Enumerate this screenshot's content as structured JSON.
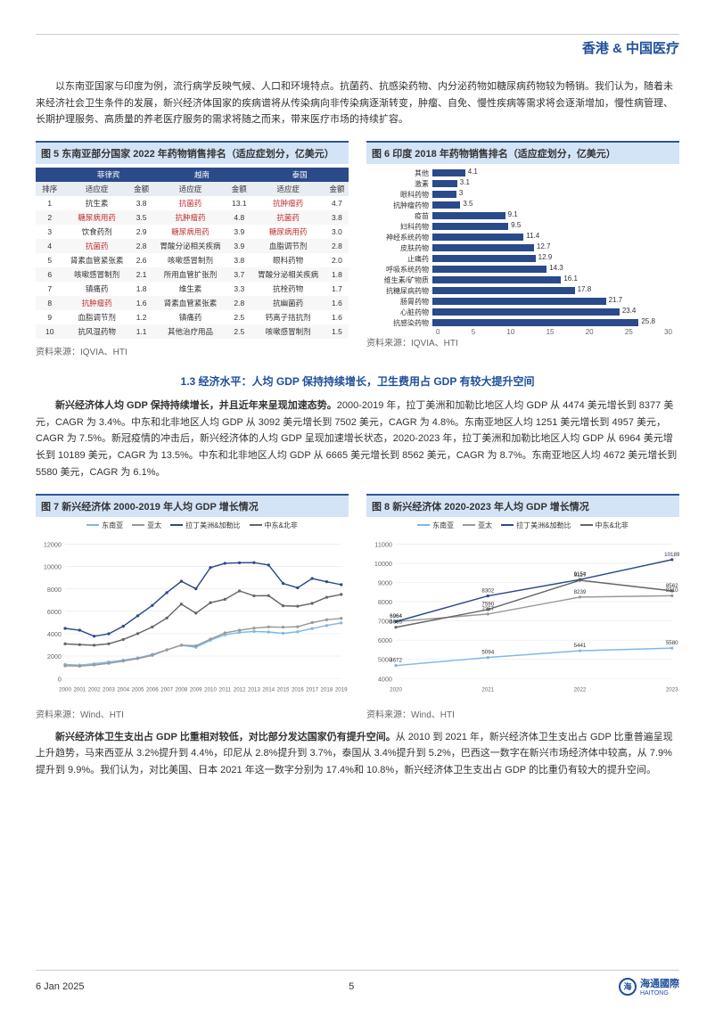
{
  "header": {
    "title": "香港 & 中国医疗"
  },
  "para1": "以东南亚国家与印度为例，流行病学反映气候、人口和环境特点。抗菌药、抗感染药物、内分泌药物如糖尿病药物较为畅销。我们认为，随着未来经济社会卫生条件的发展，新兴经济体国家的疾病谱将从传染病向非传染病逐渐转变，肿瘤、自免、慢性疾病等需求将会逐渐增加，慢性病管理、长期护理服务、高质量的养老医疗服务的需求将随之而来，带来医疗市场的持续扩容。",
  "fig5": {
    "title": "图 5  东南亚部分国家 2022 年药物销售排名（适应症划分，亿美元）",
    "source": "资料来源：IQVIA、HTI",
    "countries": [
      "菲律宾",
      "越南",
      "泰国"
    ],
    "subcols": [
      "排序",
      "适应症",
      "金额",
      "适应症",
      "金额",
      "适应症",
      "金额"
    ],
    "rows": [
      {
        "rank": 1,
        "c": [
          [
            "抗生素",
            false,
            "3.8"
          ],
          [
            "抗菌药",
            true,
            "13.1"
          ],
          [
            "抗肿瘤药",
            true,
            "4.7"
          ]
        ]
      },
      {
        "rank": 2,
        "c": [
          [
            "糖尿病用药",
            true,
            "3.5"
          ],
          [
            "抗肿瘤药",
            true,
            "4.8"
          ],
          [
            "抗菌药",
            true,
            "3.8"
          ]
        ]
      },
      {
        "rank": 3,
        "c": [
          [
            "饮食药剂",
            false,
            "2.9"
          ],
          [
            "糖尿病用药",
            true,
            "3.9"
          ],
          [
            "糖尿病用药",
            true,
            "3.0"
          ]
        ]
      },
      {
        "rank": 4,
        "c": [
          [
            "抗菌药",
            true,
            "2.8"
          ],
          [
            "胃酸分泌相关疾病",
            false,
            "3.9"
          ],
          [
            "血脂调节剂",
            false,
            "2.8"
          ]
        ]
      },
      {
        "rank": 5,
        "c": [
          [
            "肾素血管紧张素",
            false,
            "2.6"
          ],
          [
            "咳嗽感冒制剂",
            false,
            "3.8"
          ],
          [
            "眼科药物",
            false,
            "2.0"
          ]
        ]
      },
      {
        "rank": 6,
        "c": [
          [
            "咳嗽感冒制剂",
            false,
            "2.1"
          ],
          [
            "所用血管扩张剂",
            false,
            "3.7"
          ],
          [
            "胃酸分泌相关疾病",
            false,
            "1.8"
          ]
        ]
      },
      {
        "rank": 7,
        "c": [
          [
            "镇痛药",
            false,
            "1.8"
          ],
          [
            "维生素",
            false,
            "3.3"
          ],
          [
            "抗栓药物",
            false,
            "1.7"
          ]
        ]
      },
      {
        "rank": 8,
        "c": [
          [
            "抗肿瘤药",
            true,
            "1.6"
          ],
          [
            "肾素血管紧张素",
            false,
            "2.8"
          ],
          [
            "抗幽菌药",
            false,
            "1.6"
          ]
        ]
      },
      {
        "rank": 9,
        "c": [
          [
            "血脂调节剂",
            false,
            "1.2"
          ],
          [
            "镇痛药",
            false,
            "2.5"
          ],
          [
            "钙离子拮抗剂",
            false,
            "1.6"
          ]
        ]
      },
      {
        "rank": 10,
        "c": [
          [
            "抗风湿药物",
            false,
            "1.1"
          ],
          [
            "其他治疗用品",
            false,
            "2.5"
          ],
          [
            "咳嗽感冒制剂",
            false,
            "1.5"
          ]
        ]
      }
    ]
  },
  "fig6": {
    "title": "图 6  印度 2018 年药物销售排名（适应症划分，亿美元）",
    "source": "资料来源：IQVIA、HTI",
    "max": 30,
    "xticks": [
      0,
      5,
      10,
      15,
      20,
      25,
      30
    ],
    "bars": [
      {
        "label": "其他",
        "v": 4.1
      },
      {
        "label": "激素",
        "v": 3.1
      },
      {
        "label": "眼科药物",
        "v": 3.0
      },
      {
        "label": "抗肿瘤药物",
        "v": 3.5
      },
      {
        "label": "疫苗",
        "v": 9.1
      },
      {
        "label": "妇科药物",
        "v": 9.5
      },
      {
        "label": "神经系统药物",
        "v": 11.4
      },
      {
        "label": "皮肤药物",
        "v": 12.7
      },
      {
        "label": "止痛药",
        "v": 12.9
      },
      {
        "label": "呼吸系统药物",
        "v": 14.3
      },
      {
        "label": "维生素/矿物质",
        "v": 16.1
      },
      {
        "label": "抗糖尿病药物",
        "v": 17.8
      },
      {
        "label": "肠胃药物",
        "v": 21.7
      },
      {
        "label": "心脏药物",
        "v": 23.4
      },
      {
        "label": "抗感染药物",
        "v": 25.8
      }
    ],
    "bar_color": "#2a4a8a"
  },
  "section13": "1.3 经济水平：人均 GDP 保持持续增长，卫生费用占 GDP 有较大提升空间",
  "para2_lead": "新兴经济体人均 GDP 保持持续增长，并且近年来呈现加速态势。",
  "para2_rest": "2000-2019 年，拉丁美洲和加勒比地区人均 GDP 从 4474 美元增长到 8377 美元，CAGR 为 3.4%。中东和北非地区人均 GDP 从 3092 美元增长到 7502 美元，CAGR 为 4.8%。东南亚地区人均 1251 美元增长到 4957 美元，CAGR 为 7.5%。新冠疫情的冲击后，新兴经济体的人均 GDP 呈现加速增长状态，2020-2023 年，拉丁美洲和加勒比地区人均 GDP 从 6964 美元增长到 10189 美元，CAGR 为 13.5%。中东和北非地区人均 GDP 从 6665 美元增长到 8562 美元，CAGR 为 8.7%。东南亚地区人均 4672 美元增长到 5580 美元，CAGR 为 6.1%。",
  "fig7": {
    "title": "图 7  新兴经济体 2000-2019 年人均 GDP 增长情况",
    "source": "资料来源：Wind、HTI",
    "years": [
      2000,
      2001,
      2002,
      2003,
      2004,
      2005,
      2006,
      2007,
      2008,
      2009,
      2010,
      2011,
      2012,
      2013,
      2014,
      2015,
      2016,
      2017,
      2018,
      2019
    ],
    "ylim": [
      0,
      12000
    ],
    "yticks": [
      0,
      2000,
      4000,
      6000,
      8000,
      10000,
      12000
    ],
    "legend": [
      {
        "label": "东南亚",
        "color": "#7fb8e6"
      },
      {
        "label": "亚太",
        "color": "#999999"
      },
      {
        "label": "拉丁美洲&加勒比",
        "color": "#2a4a8a"
      },
      {
        "label": "中东&北非",
        "color": "#666666"
      }
    ],
    "series": {
      "sea": [
        1251,
        1191,
        1312,
        1470,
        1637,
        1833,
        2146,
        2556,
        2965,
        2781,
        3419,
        3901,
        4113,
        4200,
        4148,
        4030,
        4174,
        4458,
        4731,
        4957
      ],
      "ap": [
        1131,
        1102,
        1203,
        1357,
        1557,
        1778,
        2067,
        2555,
        2973,
        2916,
        3516,
        4067,
        4308,
        4494,
        4600,
        4582,
        4620,
        4993,
        5243,
        5365
      ],
      "lac": [
        4474,
        4310,
        3774,
        3990,
        4665,
        5598,
        6523,
        7665,
        8679,
        8010,
        9906,
        10283,
        10333,
        10344,
        10137,
        8494,
        8095,
        8928,
        8639,
        8377
      ],
      "mena": [
        3092,
        3020,
        2970,
        3100,
        3483,
        4005,
        4603,
        5398,
        6638,
        5831,
        6765,
        7067,
        7816,
        7380,
        7395,
        6493,
        6453,
        6706,
        7249,
        7502
      ]
    }
  },
  "fig8": {
    "title": "图 8  新兴经济体 2020-2023 年人均 GDP 增长情况",
    "source": "资料来源：Wind、HTI",
    "years": [
      2020,
      2021,
      2022,
      2023
    ],
    "ylim": [
      4000,
      11000
    ],
    "yticks": [
      4000,
      5000,
      6000,
      7000,
      8000,
      9000,
      10000,
      11000
    ],
    "legend": [
      {
        "label": "东南亚",
        "color": "#7fb8e6"
      },
      {
        "label": "亚太",
        "color": "#999999"
      },
      {
        "label": "拉丁美洲&加勒比",
        "color": "#2a4a8a"
      },
      {
        "label": "中东&北非",
        "color": "#666666"
      }
    ],
    "series": {
      "sea": [
        4672,
        5094,
        5441,
        5580
      ],
      "ap": [
        6964,
        7357,
        8239,
        8310
      ],
      "lac": [
        6964,
        8302,
        9154,
        10189
      ],
      "mena": [
        6665,
        7590,
        9117,
        8562
      ]
    }
  },
  "para3_lead": "新兴经济体卫生支出占 GDP 比重相对较低，对比部分发达国家仍有提升空间。",
  "para3_rest": "从 2010 到 2021 年，新兴经济体卫生支出占 GDP 比重普遍呈现上升趋势，马来西亚从 3.2%提升到 4.4%，印尼从 2.8%提升到 3.7%，泰国从 3.4%提升到 5.2%，巴西这一数字在新兴市场经济体中较高，从 7.9%提升到 9.9%。我们认为，对比美国、日本 2021 年这一数字分别为 17.4%和 10.8%，新兴经济体卫生支出占 GDP 的比重仍有较大的提升空间。",
  "footer": {
    "date": "6 Jan 2025",
    "page": "5",
    "brand": "海通國際",
    "brand_sub": "HAITONG"
  }
}
